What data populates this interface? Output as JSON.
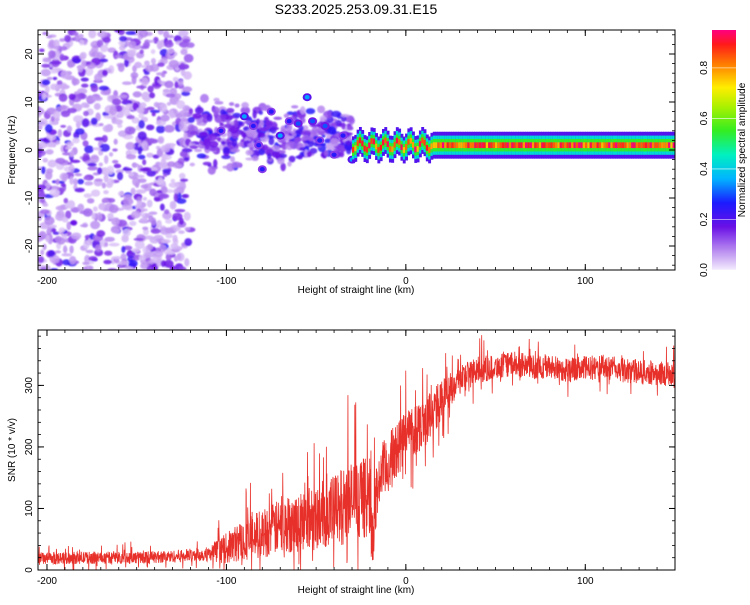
{
  "title": "S233.2025.253.09.31.E15",
  "chart_data": [
    {
      "type": "heatmap",
      "xlabel": "Height of straight line (km)",
      "ylabel": "Frequency (Hz)",
      "xlim": [
        -205,
        150
      ],
      "ylim": [
        -25,
        25
      ],
      "xticks": [
        -200,
        -100,
        0,
        100
      ],
      "xtick_labels": [
        "-200",
        "-100",
        "0",
        "100"
      ],
      "yticks": [
        -20,
        -10,
        0,
        10,
        20
      ],
      "ytick_labels": [
        "-20",
        "-10",
        "0",
        "10",
        "20"
      ],
      "colorbar": {
        "label": "Normalized spectral amplitude",
        "range": [
          0.0,
          0.95
        ],
        "ticks": [
          0.0,
          0.2,
          0.4,
          0.6,
          0.8
        ],
        "tick_labels": [
          "0.0",
          "0.2",
          "0.4",
          "0.6",
          "0.8"
        ]
      },
      "regions": [
        {
          "name": "diffuse-scatter",
          "x_range": [
            -205,
            -120
          ],
          "freq_range": [
            -25,
            25
          ],
          "amplitude": 0.15
        },
        {
          "name": "transition-blobs",
          "x_range": [
            -120,
            -30
          ],
          "freq_range": [
            -12,
            12
          ],
          "amplitude": 0.3
        },
        {
          "name": "tonal-line",
          "x_range": [
            -30,
            150
          ],
          "freq_center": 1,
          "amplitude": 0.85
        }
      ],
      "blobs": [
        {
          "x": -103,
          "f": 4.0,
          "a": 0.25
        },
        {
          "x": -90,
          "f": 7.0,
          "a": 0.35
        },
        {
          "x": -85,
          "f": 5.0,
          "a": 0.25
        },
        {
          "x": -82,
          "f": 1.0,
          "a": 0.25
        },
        {
          "x": -80,
          "f": -4.0,
          "a": 0.25
        },
        {
          "x": -75,
          "f": 8.0,
          "a": 0.25
        },
        {
          "x": -70,
          "f": 3.0,
          "a": 0.35
        },
        {
          "x": -65,
          "f": 6.0,
          "a": 0.25
        },
        {
          "x": -60,
          "f": 5.5,
          "a": 0.3
        },
        {
          "x": -55,
          "f": 11.0,
          "a": 0.35
        },
        {
          "x": -52,
          "f": 6.0,
          "a": 0.3
        },
        {
          "x": -48,
          "f": 2.0,
          "a": 0.25
        },
        {
          "x": -45,
          "f": 5.0,
          "a": 0.3
        },
        {
          "x": -40,
          "f": -1.0,
          "a": 0.25
        },
        {
          "x": -35,
          "f": 3.0,
          "a": 0.25
        },
        {
          "x": -30,
          "f": -2.0,
          "a": 0.35
        },
        {
          "x": -25,
          "f": 0.5,
          "a": 0.45
        },
        {
          "x": -20,
          "f": 1.0,
          "a": 0.6
        },
        {
          "x": -15,
          "f": 0.5,
          "a": 0.55
        },
        {
          "x": -10,
          "f": 1.5,
          "a": 0.5
        },
        {
          "x": -5,
          "f": 1.0,
          "a": 0.55
        },
        {
          "x": 0,
          "f": 1.5,
          "a": 0.5
        },
        {
          "x": 5,
          "f": 1.0,
          "a": 0.55
        },
        {
          "x": 85,
          "f": 1.0,
          "a": 0.9
        }
      ]
    },
    {
      "type": "line",
      "xlabel": "Height of straight line (km)",
      "ylabel": "SNR (10 * v/v)",
      "xlim": [
        -205,
        150
      ],
      "ylim": [
        0,
        390
      ],
      "xticks": [
        -200,
        -100,
        0,
        100
      ],
      "xtick_labels": [
        "-200",
        "-100",
        "0",
        "100"
      ],
      "yticks": [
        0,
        100,
        200,
        300
      ],
      "ytick_labels": [
        "0",
        "100",
        "200",
        "300"
      ],
      "color": "#e8302a",
      "series": [
        {
          "name": "SNR",
          "x": [
            -205,
            -180,
            -150,
            -130,
            -110,
            -100,
            -90,
            -80,
            -70,
            -60,
            -50,
            -40,
            -32,
            -20,
            -19,
            -15,
            -10,
            -5,
            0,
            5,
            10,
            15,
            20,
            25,
            30,
            40,
            50,
            60,
            70,
            80,
            90,
            100,
            110,
            120,
            130,
            140,
            150
          ],
          "y": [
            18,
            20,
            20,
            22,
            26,
            35,
            50,
            60,
            70,
            78,
            88,
            95,
            110,
            120,
            55,
            150,
            170,
            195,
            220,
            230,
            240,
            255,
            275,
            295,
            310,
            325,
            330,
            335,
            330,
            330,
            325,
            328,
            330,
            325,
            322,
            320,
            318
          ],
          "noise": [
            10,
            10,
            10,
            10,
            12,
            25,
            35,
            40,
            45,
            50,
            55,
            60,
            65,
            65,
            60,
            50,
            50,
            48,
            45,
            45,
            42,
            40,
            35,
            30,
            25,
            22,
            20,
            20,
            20,
            20,
            20,
            20,
            20,
            20,
            20,
            20,
            20
          ]
        }
      ]
    }
  ]
}
